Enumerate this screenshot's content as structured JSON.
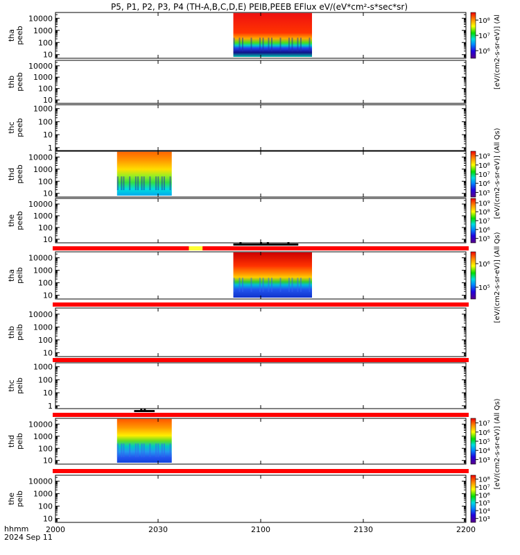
{
  "title": "P5, P1, P2, P3, P4 (TH-A,B,C,D,E) PEIB,PEEB EFlux eV/(eV*cm²-s*sec*sr)",
  "x_axis": {
    "label_line1": "hhmm",
    "label_line2": "2024 Sep 11",
    "ticks": [
      "2000",
      "2030",
      "2100",
      "2130",
      "2200"
    ]
  },
  "colorbar_labels": {
    "peeb_a": "[eV/(cm2-s-sr-eV)] (Al",
    "peeb_de": "[eV/(cm2-s-sr-eV)] (All Qs)",
    "peib_a": "[eV/(cm2-s-sr-eV)] (All Qs)",
    "peib_de": "[eV/(cm2-s-sr-eV)] (All Qs)"
  },
  "colors": {
    "status_bar": "#ff0000",
    "status_bar_highlight": "#ffff33",
    "frame": "#000000"
  },
  "chart_data": {
    "type": "heatmap",
    "x_range": [
      "20:00",
      "22:00"
    ],
    "panels": [
      {
        "id": "tha_peeb",
        "probe": "tha",
        "inst": "peeb",
        "yticks": [
          "10",
          "100",
          "1000",
          "10000"
        ],
        "ylim": [
          5,
          30000
        ],
        "data_span": [
          "20:52",
          "21:15"
        ],
        "profile": "peeb_a",
        "colorbar": {
          "ticks": [
            "10⁶",
            "10⁷",
            "10⁸"
          ]
        }
      },
      {
        "id": "thb_peeb",
        "probe": "thb",
        "inst": "peeb",
        "yticks": [
          "10",
          "100",
          "1000",
          "10000"
        ],
        "ylim": [
          5,
          30000
        ],
        "data_span": null
      },
      {
        "id": "thc_peeb",
        "probe": "thc",
        "inst": "peeb",
        "yticks": [
          "1",
          "10",
          "100",
          "1000"
        ],
        "ylim": [
          0.6,
          2000
        ],
        "data_span": null
      },
      {
        "id": "thd_peeb",
        "probe": "thd",
        "inst": "peeb",
        "yticks": [
          "10",
          "100",
          "1000",
          "10000"
        ],
        "ylim": [
          5,
          30000
        ],
        "data_span": [
          "20:18",
          "20:34"
        ],
        "profile": "peeb_d",
        "colorbar": {
          "ticks": [
            "10⁵",
            "10⁶",
            "10⁷",
            "10⁸",
            "10⁹"
          ]
        }
      },
      {
        "id": "the_peeb",
        "probe": "the",
        "inst": "peeb",
        "yticks": [
          "10",
          "100",
          "1000",
          "10000"
        ],
        "ylim": [
          5,
          30000
        ],
        "data_span": null,
        "colorbar": {
          "ticks": [
            "10⁵",
            "10⁶",
            "10⁷",
            "10⁸",
            "10⁹"
          ]
        }
      },
      {
        "id": "tha_peib",
        "probe": "tha",
        "inst": "peib",
        "yticks": [
          "10",
          "100",
          "1000",
          "10000"
        ],
        "ylim": [
          5,
          30000
        ],
        "data_span": [
          "20:52",
          "21:15"
        ],
        "profile": "peib_a",
        "colorbar": {
          "ticks": [
            "10⁵",
            "10⁶"
          ]
        }
      },
      {
        "id": "thb_peib",
        "probe": "thb",
        "inst": "peib",
        "yticks": [
          "10",
          "100",
          "1000",
          "10000"
        ],
        "ylim": [
          5,
          30000
        ],
        "data_span": null
      },
      {
        "id": "thc_peib",
        "probe": "thc",
        "inst": "peib",
        "yticks": [
          "1",
          "10",
          "100",
          "1000"
        ],
        "ylim": [
          0.6,
          2000
        ],
        "data_span": null
      },
      {
        "id": "thd_peib",
        "probe": "thd",
        "inst": "peib",
        "yticks": [
          "10",
          "100",
          "1000",
          "10000"
        ],
        "ylim": [
          5,
          30000
        ],
        "data_span": [
          "20:18",
          "20:34"
        ],
        "profile": "peib_d",
        "colorbar": {
          "ticks": [
            "10³",
            "10⁴",
            "10⁵",
            "10⁶",
            "10⁷"
          ]
        }
      },
      {
        "id": "the_peib",
        "probe": "the",
        "inst": "peib",
        "yticks": [
          "10",
          "100",
          "1000",
          "10000"
        ],
        "ylim": [
          5,
          30000
        ],
        "data_span": null,
        "colorbar": {
          "ticks": [
            "10³",
            "10⁴",
            "10⁵",
            "10⁶",
            "10⁷",
            "10⁸"
          ]
        }
      }
    ],
    "status_bars": [
      {
        "highlight": [
          "20:39",
          "20:43"
        ],
        "ticks": [
          "20:54",
          "21:00",
          "21:02",
          "21:08"
        ],
        "thick": [
          "20:52",
          "21:11"
        ]
      },
      {
        "highlight": null,
        "ticks": [],
        "thick": null
      },
      {
        "highlight": null,
        "ticks": [],
        "thick": null
      },
      {
        "highlight": null,
        "ticks": [
          "20:25",
          "20:26"
        ],
        "thick": [
          "20:23",
          "20:29"
        ]
      },
      {
        "highlight": null,
        "ticks": [],
        "thick": null
      }
    ]
  }
}
